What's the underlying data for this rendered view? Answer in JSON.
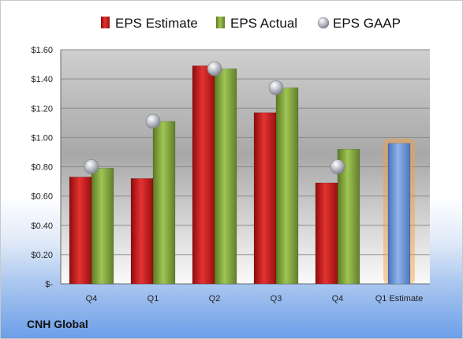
{
  "company": "CNH Global",
  "chart_data": {
    "type": "bar",
    "categories": [
      "Q4",
      "Q1",
      "Q2",
      "Q3",
      "Q4",
      "Q1 Estimate"
    ],
    "series": [
      {
        "name": "EPS Estimate",
        "type": "bar",
        "color": "#d42020",
        "values": [
          0.73,
          0.72,
          1.49,
          1.17,
          0.69,
          null
        ]
      },
      {
        "name": "EPS Actual",
        "type": "bar",
        "color": "#8cb040",
        "values": [
          0.79,
          1.11,
          1.47,
          1.34,
          0.92,
          null
        ]
      },
      {
        "name": "EPS GAAP",
        "type": "scatter",
        "color": "#b8bcc4",
        "values": [
          0.8,
          1.11,
          1.47,
          1.34,
          0.8,
          null
        ]
      }
    ],
    "highlight_bar": {
      "category": "Q1 Estimate",
      "value": 0.96,
      "color": "#6f9ad8",
      "glow": "#f4a040"
    },
    "ylim": [
      0,
      1.6
    ],
    "yticks": [
      0,
      0.2,
      0.4,
      0.6,
      0.8,
      1.0,
      1.2,
      1.4,
      1.6
    ],
    "ytick_labels": [
      "$-",
      "$0.20",
      "$0.40",
      "$0.60",
      "$0.80",
      "$1.00",
      "$1.20",
      "$1.40",
      "$1.60"
    ],
    "legend_position": "top",
    "grid": true,
    "title": "",
    "xlabel": "",
    "ylabel": ""
  }
}
